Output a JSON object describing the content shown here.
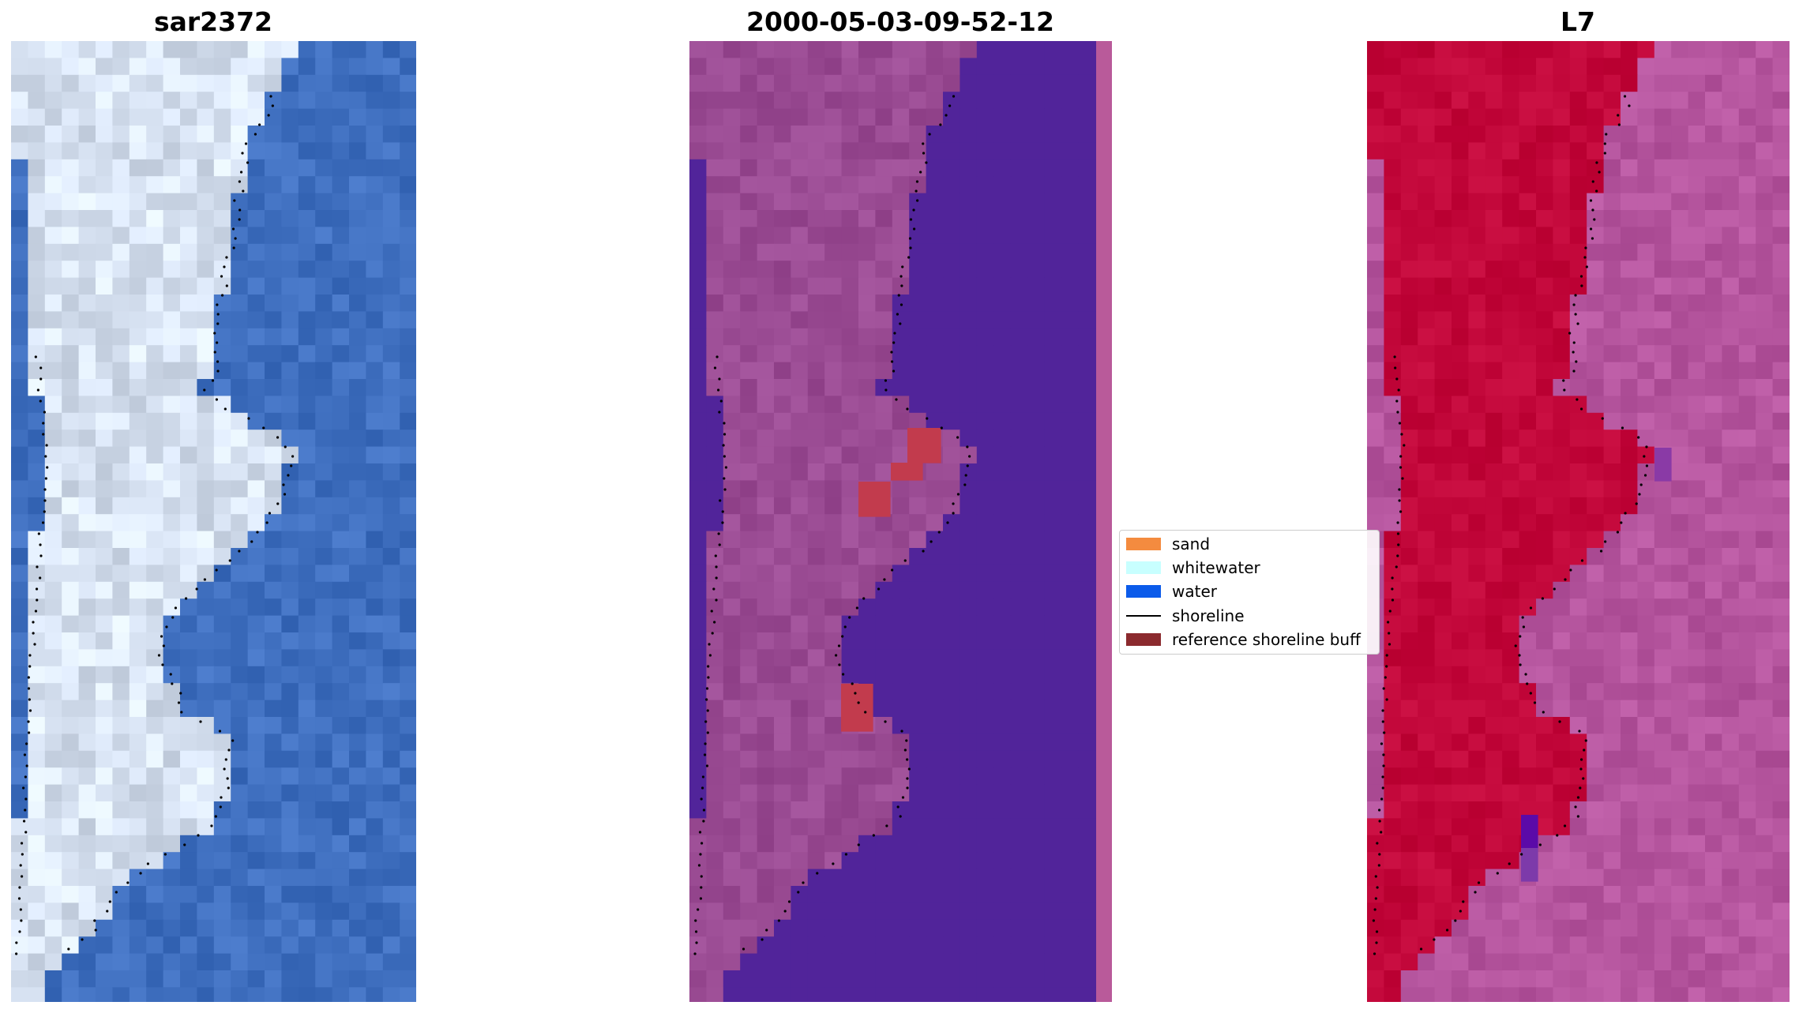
{
  "panels": [
    {
      "title": "sar2372",
      "kind": "rgb"
    },
    {
      "title": "2000-05-03-09-52-12",
      "kind": "classified"
    },
    {
      "title": "L7",
      "kind": "index"
    }
  ],
  "legend": {
    "items": [
      {
        "label": "sand",
        "color": "#f48b3f",
        "type": "patch"
      },
      {
        "label": "whitewater",
        "color": "#c8ffff",
        "type": "patch"
      },
      {
        "label": "water",
        "color": "#0b5bea",
        "type": "patch"
      },
      {
        "label": "shoreline",
        "color": "#000000",
        "type": "line"
      },
      {
        "label": "reference shoreline buff",
        "color": "#8b2a2e",
        "type": "patch"
      }
    ]
  },
  "colors": {
    "rgb_water": "#3f6fbf",
    "rgb_sand": "#d7e2f2",
    "class_water": "#51249a",
    "class_land": "#9a4b93",
    "class_buffer": "#c23b4d",
    "index_land": "#c2073a",
    "index_water": "#b5559e"
  }
}
